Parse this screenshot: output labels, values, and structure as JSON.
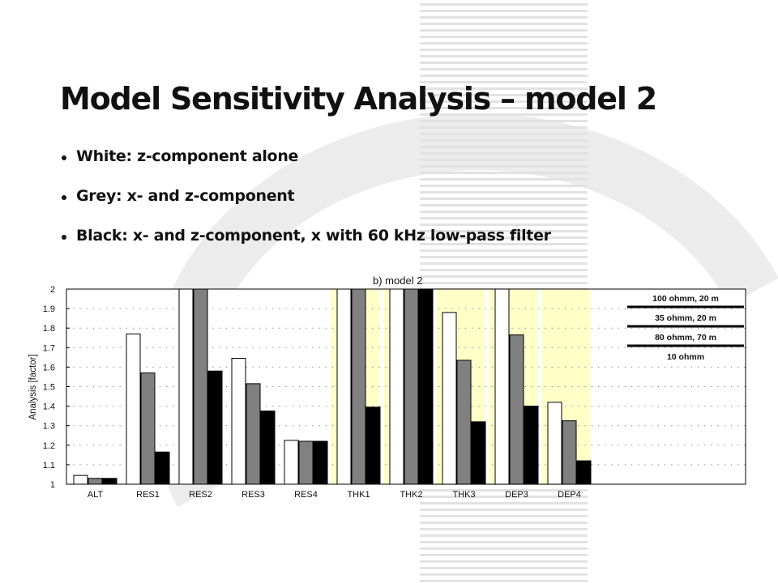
{
  "slide": {
    "title": "Model Sensitivity Analysis – model 2",
    "bullets": [
      "White: z-component alone",
      "Grey: x- and z-component",
      "Black: x- and z-component, x with 60 kHz low-pass filter"
    ]
  },
  "chart_data": {
    "type": "bar",
    "title": "b)    model 2",
    "xlabel": "",
    "ylabel": "Analysis [factor]",
    "ylim": [
      1,
      2
    ],
    "yticks": [
      1,
      1.1,
      1.2,
      1.3,
      1.4,
      1.5,
      1.6,
      1.7,
      1.8,
      1.9,
      2
    ],
    "grid": true,
    "categories": [
      "ALT",
      "RES1",
      "RES2",
      "RES3",
      "RES4",
      "THK1",
      "THK2",
      "THK3",
      "DEP3",
      "DEP4"
    ],
    "series": [
      {
        "color": "#ffffff",
        "values": [
          1.045,
          1.77,
          2.0,
          1.645,
          1.225,
          2.0,
          2.0,
          1.88,
          2.0,
          1.42
        ]
      },
      {
        "color": "#808080",
        "values": [
          1.03,
          1.57,
          2.0,
          1.515,
          1.22,
          2.0,
          2.0,
          1.635,
          1.765,
          1.325
        ]
      },
      {
        "color": "#000000",
        "values": [
          1.03,
          1.165,
          1.58,
          1.375,
          1.22,
          1.395,
          2.0,
          1.32,
          1.4,
          1.12
        ]
      }
    ],
    "highlighted_categories": [
      "THK1",
      "THK2",
      "THK3",
      "DEP3",
      "DEP4"
    ],
    "highlight_color": "#ffffc8",
    "legend": {
      "placement": "top-right",
      "entries": [
        "100 ohmm, 20 m",
        "35 ohmm, 20 m",
        "80 ohmm, 70 m",
        "10 ohmm"
      ]
    }
  }
}
